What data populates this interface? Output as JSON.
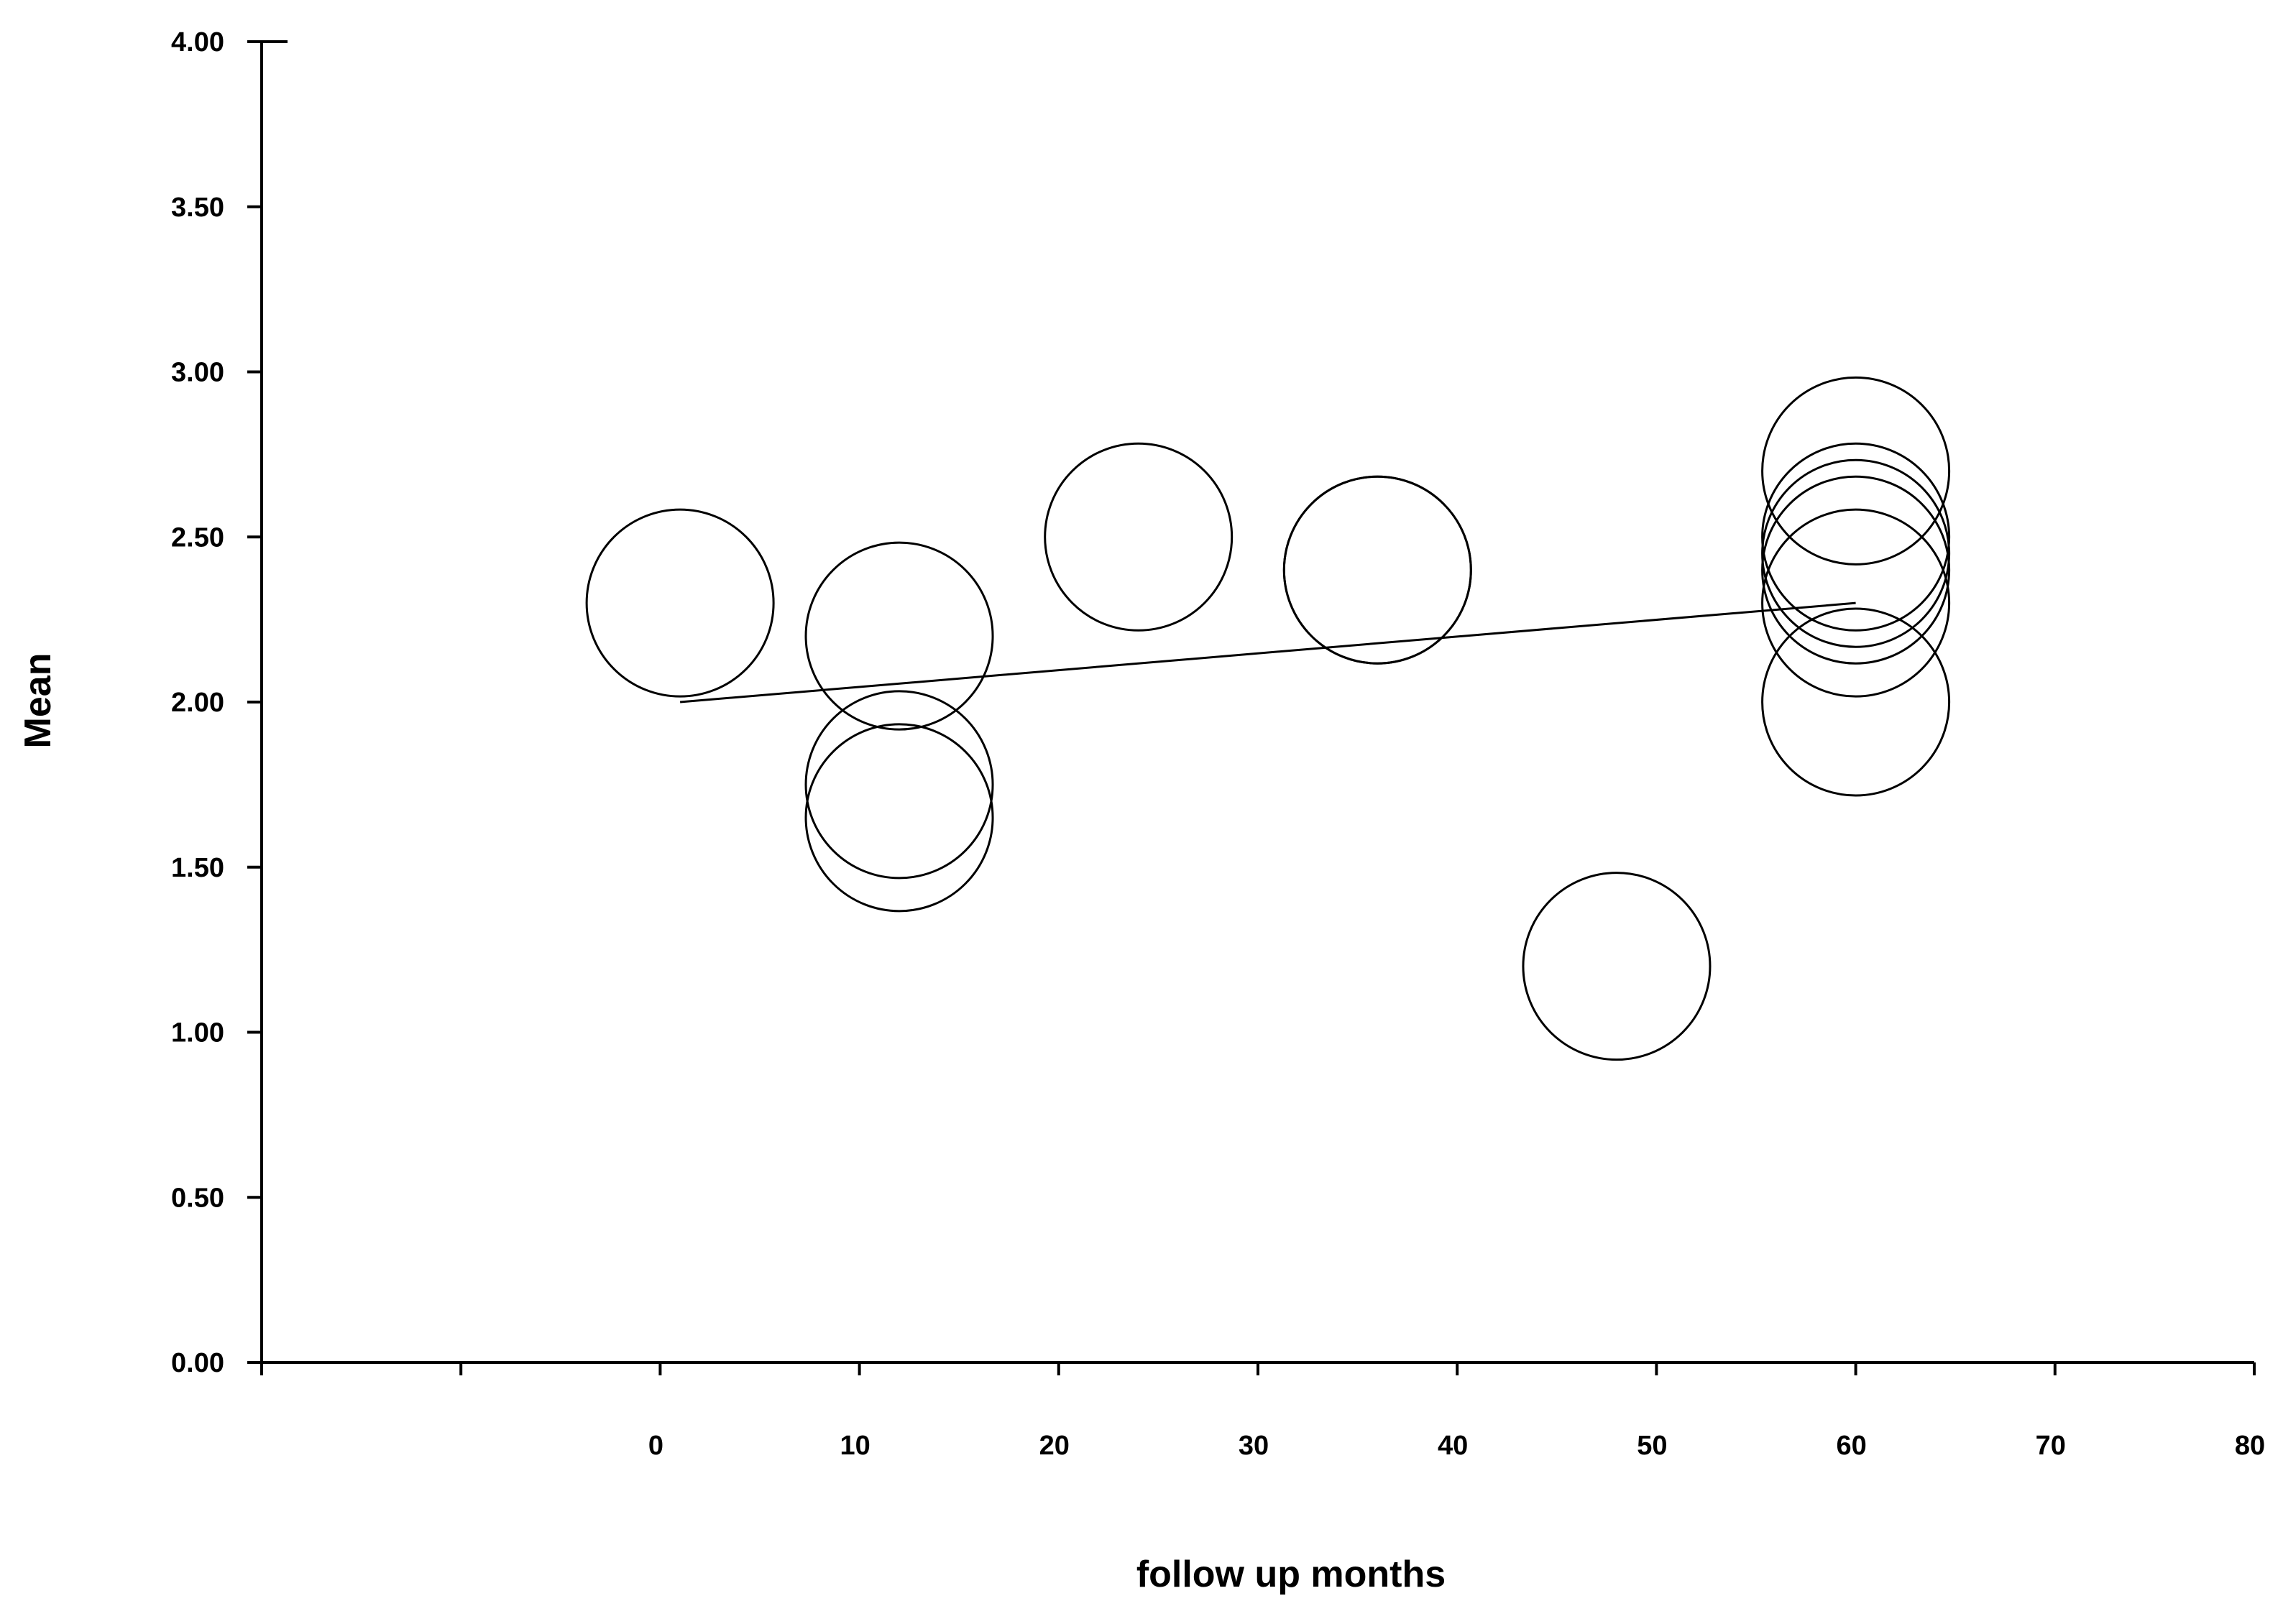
{
  "chart_data": {
    "type": "scatter",
    "title": "",
    "xlabel": "follow up months",
    "ylabel": "Mean",
    "xlim": [
      -20,
      80
    ],
    "ylim": [
      0,
      4
    ],
    "x_ticks": [
      {
        "value": -20,
        "label": ""
      },
      {
        "value": -10,
        "label": ""
      },
      {
        "value": 0,
        "label": "0"
      },
      {
        "value": 10,
        "label": "10"
      },
      {
        "value": 20,
        "label": "20"
      },
      {
        "value": 30,
        "label": "30"
      },
      {
        "value": 40,
        "label": "40"
      },
      {
        "value": 50,
        "label": "50"
      },
      {
        "value": 60,
        "label": "60"
      },
      {
        "value": 70,
        "label": "70"
      },
      {
        "value": 80,
        "label": "80"
      }
    ],
    "y_ticks": [
      {
        "value": 0,
        "label": "0.00"
      },
      {
        "value": 0.5,
        "label": "0.50"
      },
      {
        "value": 1,
        "label": "1.00"
      },
      {
        "value": 1.5,
        "label": "1.50"
      },
      {
        "value": 2,
        "label": "2.00"
      },
      {
        "value": 2.5,
        "label": "2.50"
      },
      {
        "value": 3,
        "label": "3.00"
      },
      {
        "value": 3.5,
        "label": "3.50"
      },
      {
        "value": 4,
        "label": "4.00"
      }
    ],
    "grid": false,
    "legend": "none",
    "marker": "open-circle",
    "points": [
      {
        "x": 1,
        "y": 2.3
      },
      {
        "x": 12,
        "y": 2.2
      },
      {
        "x": 12,
        "y": 1.75
      },
      {
        "x": 12,
        "y": 1.65
      },
      {
        "x": 24,
        "y": 2.5
      },
      {
        "x": 36,
        "y": 2.4
      },
      {
        "x": 36,
        "y": 2.4
      },
      {
        "x": 48,
        "y": 1.2
      },
      {
        "x": 60,
        "y": 2.7
      },
      {
        "x": 60,
        "y": 2.5
      },
      {
        "x": 60,
        "y": 2.45
      },
      {
        "x": 60,
        "y": 2.4
      },
      {
        "x": 60,
        "y": 2.3
      },
      {
        "x": 60,
        "y": 2.0
      }
    ],
    "fit_line": {
      "x": [
        1,
        60
      ],
      "y": [
        2.0,
        2.3
      ]
    },
    "colors": {
      "marker_stroke": "#000000",
      "line": "#000000",
      "axis": "#000000",
      "background": "#ffffff"
    }
  }
}
